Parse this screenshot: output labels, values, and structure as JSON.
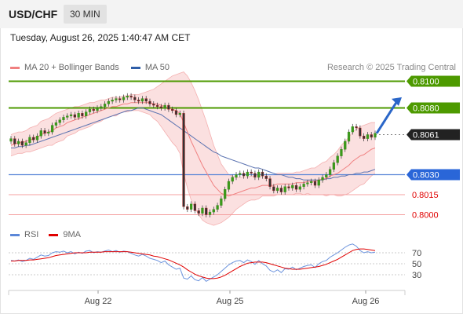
{
  "header": {
    "symbol": "USD/CHF",
    "timeframe": "30 MIN"
  },
  "datetime": "Tuesday, August 26, 2025 1:40:47 AM CET",
  "legend": {
    "ma20_label": "MA 20 + Bollinger Bands",
    "ma50_label": "MA 50",
    "ma20_color": "#f08080",
    "ma50_color": "#2f5ea8"
  },
  "research": "Research © 2025 Trading Central",
  "rsi_legend": {
    "rsi_label": "RSI",
    "ma_label": "9MA",
    "rsi_color": "#5b87d8",
    "ma_color": "#e00000"
  },
  "chart_data": {
    "type": "line",
    "subtype": "candlestick",
    "symbol": "USD/CHF",
    "timeframe": "30 MIN",
    "x_ticks": [
      "Aug 22",
      "Aug 25",
      "Aug 26"
    ],
    "last_price": 0.8061,
    "y_range": [
      0.7995,
      0.8105
    ],
    "levels": [
      {
        "value": 0.81,
        "label": "0.8100",
        "kind": "resistance",
        "color": "#4d9a00"
      },
      {
        "value": 0.808,
        "label": "0.8080",
        "kind": "resistance",
        "color": "#4d9a00"
      },
      {
        "value": 0.806,
        "label": "0.8061",
        "kind": "last",
        "color": "#222222"
      },
      {
        "value": 0.803,
        "label": "0.8030",
        "kind": "pivot",
        "color": "#2a66d8"
      },
      {
        "value": 0.8015,
        "label": "0.8015",
        "kind": "support",
        "color": "#e00000"
      },
      {
        "value": 0.8,
        "label": "0.8000",
        "kind": "support",
        "color": "#e00000"
      }
    ],
    "close_series": [
      0.8057,
      0.8053,
      0.8055,
      0.8052,
      0.8054,
      0.8058,
      0.8056,
      0.8059,
      0.8063,
      0.8061,
      0.8062,
      0.8067,
      0.8069,
      0.8071,
      0.8073,
      0.8074,
      0.8075,
      0.8073,
      0.8076,
      0.8074,
      0.8077,
      0.8079,
      0.8078,
      0.808,
      0.8081,
      0.8083,
      0.8085,
      0.8086,
      0.8087,
      0.8086,
      0.8088,
      0.8089,
      0.8088,
      0.8086,
      0.8085,
      0.8087,
      0.8085,
      0.8083,
      0.8082,
      0.8081,
      0.808,
      0.8082,
      0.8079,
      0.8078,
      0.8075,
      0.8076,
      0.8006,
      0.8004,
      0.8008,
      0.8003,
      0.8001,
      0.8005,
      0.8,
      0.8002,
      0.8004,
      0.8007,
      0.8012,
      0.8019,
      0.8025,
      0.8028,
      0.803,
      0.8031,
      0.8029,
      0.8032,
      0.8031,
      0.8028,
      0.8032,
      0.8029,
      0.8027,
      0.8021,
      0.8018,
      0.802,
      0.8017,
      0.8021,
      0.802,
      0.8022,
      0.8019,
      0.8021,
      0.8023,
      0.8024,
      0.8025,
      0.8022,
      0.8026,
      0.8028,
      0.803,
      0.8034,
      0.8039,
      0.8044,
      0.8049,
      0.8055,
      0.8062,
      0.8066,
      0.8065,
      0.8059,
      0.8057,
      0.806,
      0.8058,
      0.8061
    ],
    "ma20_series": [
      0.8052,
      0.8053,
      0.8054,
      0.8054,
      0.8055,
      0.8056,
      0.8057,
      0.8058,
      0.806,
      0.8061,
      0.8062,
      0.8063,
      0.8065,
      0.8066,
      0.8067,
      0.8069,
      0.807,
      0.8071,
      0.8072,
      0.8073,
      0.8074,
      0.8075,
      0.8076,
      0.8077,
      0.8078,
      0.8079,
      0.808,
      0.8081,
      0.8081,
      0.8082,
      0.8083,
      0.8083,
      0.8084,
      0.8084,
      0.8084,
      0.8084,
      0.8084,
      0.8084,
      0.8083,
      0.8083,
      0.8082,
      0.8081,
      0.808,
      0.8079,
      0.8078,
      0.8076,
      0.8069,
      0.8062,
      0.8055,
      0.8049,
      0.8043,
      0.8037,
      0.8032,
      0.8027,
      0.8022,
      0.8019,
      0.8016,
      0.8015,
      0.8014,
      0.8015,
      0.8016,
      0.8017,
      0.8018,
      0.8019,
      0.802,
      0.802,
      0.8021,
      0.8022,
      0.8022,
      0.8022,
      0.8022,
      0.8023,
      0.8023,
      0.8023,
      0.8023,
      0.8023,
      0.8024,
      0.8024,
      0.8024,
      0.8025,
      0.8025,
      0.8025,
      0.8026,
      0.8027,
      0.8027,
      0.8029,
      0.803,
      0.8031,
      0.8033,
      0.8035,
      0.8037,
      0.804,
      0.8042,
      0.8044,
      0.8045,
      0.8047,
      0.8049,
      0.805
    ],
    "ma50_series": [
      0.805,
      0.805,
      0.8051,
      0.8051,
      0.8052,
      0.8052,
      0.8053,
      0.8054,
      0.8055,
      0.8056,
      0.8057,
      0.8058,
      0.8059,
      0.806,
      0.8061,
      0.8062,
      0.8063,
      0.8064,
      0.8065,
      0.8066,
      0.8067,
      0.8068,
      0.8069,
      0.807,
      0.8071,
      0.8072,
      0.8073,
      0.8074,
      0.8075,
      0.8076,
      0.8077,
      0.8078,
      0.8078,
      0.8079,
      0.808,
      0.808,
      0.8079,
      0.8078,
      0.8077,
      0.8076,
      0.8075,
      0.8073,
      0.8071,
      0.8069,
      0.8067,
      0.8065,
      0.8063,
      0.8061,
      0.8059,
      0.8057,
      0.8055,
      0.8053,
      0.8051,
      0.8049,
      0.8047,
      0.8046,
      0.8044,
      0.8043,
      0.8042,
      0.8041,
      0.804,
      0.8039,
      0.8038,
      0.8037,
      0.8036,
      0.8035,
      0.8035,
      0.8034,
      0.8033,
      0.8032,
      0.8031,
      0.803,
      0.803,
      0.8029,
      0.8028,
      0.8028,
      0.8027,
      0.8027,
      0.8026,
      0.8026,
      0.8026,
      0.8026,
      0.8026,
      0.8026,
      0.8027,
      0.8027,
      0.8028,
      0.8028,
      0.8029,
      0.8029,
      0.803,
      0.803,
      0.8031,
      0.8031,
      0.8032,
      0.8032,
      0.8033,
      0.8034
    ],
    "bollinger_width": [
      0.0008,
      0.0008,
      0.0008,
      0.0008,
      0.0008,
      0.0009,
      0.0009,
      0.0009,
      0.001,
      0.001,
      0.001,
      0.0011,
      0.0011,
      0.0011,
      0.0011,
      0.001,
      0.001,
      0.001,
      0.0009,
      0.0009,
      0.0009,
      0.0009,
      0.0008,
      0.0008,
      0.0008,
      0.0007,
      0.0007,
      0.0007,
      0.0007,
      0.0006,
      0.0006,
      0.0006,
      0.0006,
      0.0006,
      0.0006,
      0.0007,
      0.0008,
      0.0009,
      0.0011,
      0.0013,
      0.0016,
      0.0019,
      0.0022,
      0.0025,
      0.0027,
      0.003,
      0.0038,
      0.0042,
      0.0044,
      0.0044,
      0.0043,
      0.0041,
      0.0038,
      0.0034,
      0.003,
      0.0026,
      0.0022,
      0.0019,
      0.0016,
      0.0014,
      0.0012,
      0.0011,
      0.001,
      0.0009,
      0.0009,
      0.0009,
      0.0009,
      0.0008,
      0.0008,
      0.0008,
      0.0008,
      0.0008,
      0.0008,
      0.0008,
      0.0008,
      0.0008,
      0.0008,
      0.0008,
      0.0009,
      0.0009,
      0.001,
      0.001,
      0.0011,
      0.0012,
      0.0013,
      0.0014,
      0.0015,
      0.0017,
      0.0019,
      0.002,
      0.0021,
      0.0022,
      0.0022,
      0.0022,
      0.0022,
      0.0021,
      0.002,
      0.0019
    ],
    "rsi": {
      "levels": [
        70,
        50,
        30
      ],
      "y_range": [
        10,
        90
      ],
      "rsi_series": [
        56,
        55,
        57,
        54,
        56,
        60,
        58,
        62,
        66,
        64,
        65,
        70,
        72,
        71,
        73,
        70,
        72,
        68,
        71,
        69,
        73,
        74,
        70,
        72,
        71,
        73,
        75,
        72,
        74,
        71,
        73,
        72,
        69,
        66,
        64,
        67,
        64,
        60,
        58,
        56,
        52,
        55,
        48,
        44,
        40,
        42,
        24,
        22,
        28,
        21,
        19,
        25,
        18,
        22,
        26,
        30,
        36,
        42,
        48,
        52,
        55,
        56,
        52,
        57,
        54,
        49,
        56,
        50,
        46,
        38,
        35,
        39,
        34,
        41,
        40,
        44,
        39,
        42,
        45,
        47,
        48,
        43,
        50,
        54,
        56,
        62,
        66,
        70,
        75,
        80,
        84,
        86,
        82,
        74,
        70,
        72,
        70,
        71
      ],
      "ma_series": [
        55,
        55,
        56,
        56,
        56,
        57,
        57,
        58,
        59,
        60,
        61,
        63,
        65,
        66,
        67,
        68,
        69,
        70,
        70,
        70,
        70,
        71,
        71,
        71,
        71,
        72,
        72,
        72,
        72,
        72,
        72,
        72,
        71,
        70,
        69,
        68,
        67,
        66,
        64,
        63,
        61,
        59,
        57,
        54,
        51,
        48,
        44,
        39,
        35,
        31,
        28,
        26,
        24,
        23,
        23,
        24,
        26,
        29,
        33,
        37,
        41,
        45,
        48,
        51,
        52,
        53,
        53,
        53,
        52,
        50,
        48,
        46,
        44,
        42,
        41,
        40,
        40,
        40,
        41,
        42,
        43,
        44,
        45,
        47,
        49,
        52,
        55,
        58,
        62,
        66,
        70,
        74,
        76,
        77,
        77,
        76,
        75,
        74
      ]
    }
  }
}
